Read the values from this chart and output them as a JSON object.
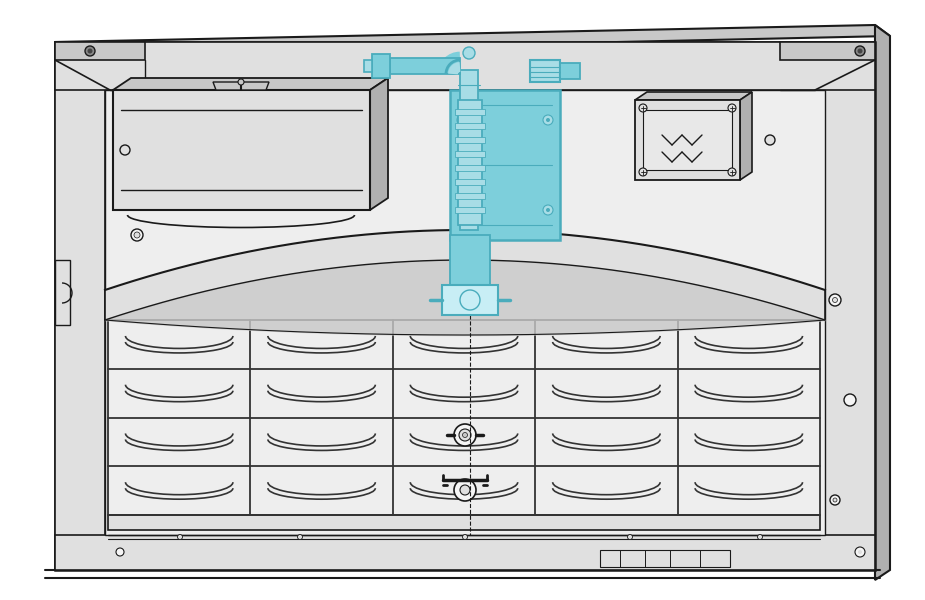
{
  "bg_color": "#ffffff",
  "lc": "#1a1a1a",
  "lc2": "#333333",
  "face_light": "#f5f5f5",
  "face_mid": "#e0e0e0",
  "face_dark": "#c8c8c8",
  "face_darker": "#b0b0b0",
  "cyan": "#7dcfdb",
  "cyan_dark": "#4aacbc",
  "cyan_mid": "#a8dde6",
  "cyan_light": "#c8eef5",
  "fig_width": 9.25,
  "fig_height": 6.0
}
